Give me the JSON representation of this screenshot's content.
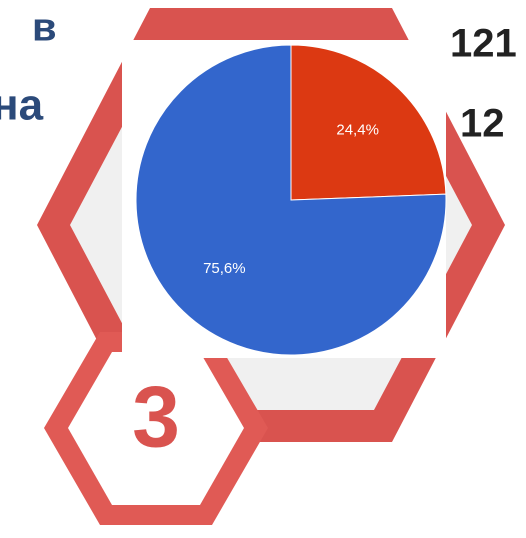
{
  "chart_data": {
    "type": "pie",
    "values": [
      24.4,
      75.6
    ],
    "value_labels": [
      "24,4%",
      "75,6%"
    ],
    "colors": [
      "#dc3912",
      "#3366cc"
    ],
    "start_angle": 0,
    "direction": "clockwise"
  },
  "overlay_texts": [
    "в",
    "на",
    "121",
    "12",
    "3"
  ]
}
